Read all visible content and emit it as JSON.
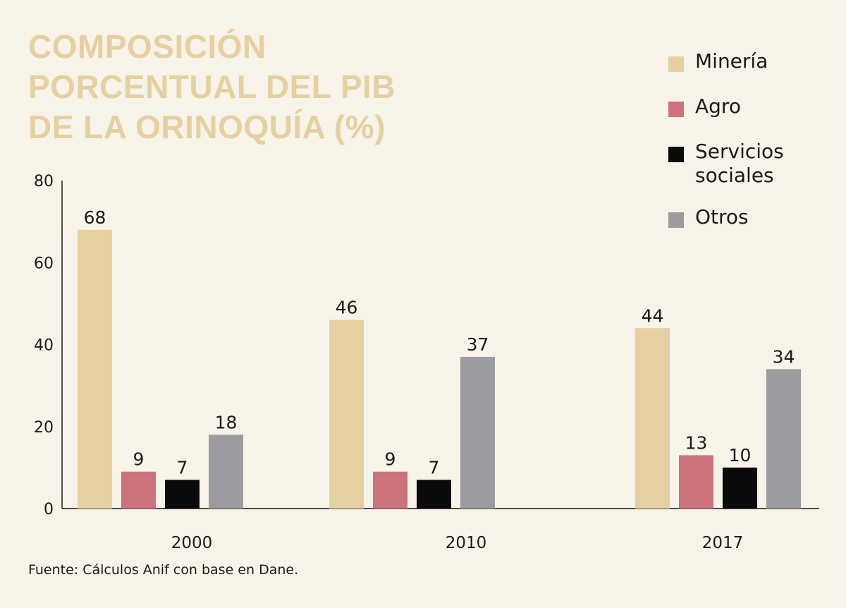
{
  "title_lines": [
    "COMPOSICIÓN",
    "PORCENTUAL DEL PIB",
    "DE LA ORINOQUÍA (%)"
  ],
  "source": "Fuente: Cálculos Anif con base en Dane.",
  "colors": {
    "background": "#f8f3e8",
    "title": "#e5d0a2",
    "mineria": "#e5d0a2",
    "agro": "#cb727c",
    "servicios": "#0a0a0a",
    "otros": "#9c9ba0"
  },
  "legend": [
    {
      "label": "Minería",
      "color": "#e5d0a2"
    },
    {
      "label": "Agro",
      "color": "#cb727c"
    },
    {
      "label": "Servicios sociales",
      "color": "#0a0a0a"
    },
    {
      "label": "Otros",
      "color": "#9c9ba0"
    }
  ],
  "chart_data": {
    "type": "bar",
    "title": "COMPOSICIÓN PORCENTUAL DEL PIB DE LA ORINOQUÍA (%)",
    "categories": [
      "2000",
      "2010",
      "2017"
    ],
    "series": [
      {
        "name": "Minería",
        "values": [
          68,
          46,
          44
        ],
        "color": "#e5d0a2"
      },
      {
        "name": "Agro",
        "values": [
          9,
          9,
          13
        ],
        "color": "#cb727c"
      },
      {
        "name": "Servicios sociales",
        "values": [
          7,
          7,
          10
        ],
        "color": "#0a0a0a"
      },
      {
        "name": "Otros",
        "values": [
          18,
          37,
          34
        ],
        "color": "#9c9ba0"
      }
    ],
    "ylim": [
      0,
      80
    ],
    "yticks": [
      0,
      20,
      40,
      60,
      80
    ],
    "xlabel": "",
    "ylabel": "",
    "grid": false,
    "legend_position": "top-right"
  }
}
